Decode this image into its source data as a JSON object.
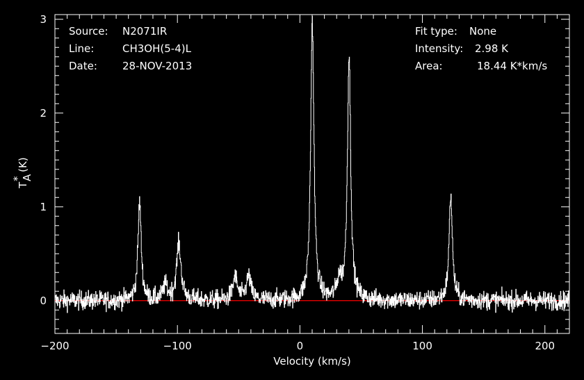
{
  "chart_data": {
    "type": "line",
    "title": "",
    "xlabel": "Velocity (km/s)",
    "ylabel": "T*A (K)",
    "ylabel_main": "T",
    "ylabel_sup": "*",
    "ylabel_sub": "A",
    "ylabel_unit": "(K)",
    "xlim": [
      -200,
      220
    ],
    "ylim": [
      -0.35,
      3.05
    ],
    "xticks": [
      -200,
      -100,
      0,
      100,
      200
    ],
    "xtick_labels": [
      "−200",
      "−100",
      "0",
      "100",
      "200"
    ],
    "yticks": [
      0,
      1,
      2,
      3
    ],
    "ytick_labels": [
      "0",
      "1",
      "2",
      "3"
    ],
    "grid": false,
    "background_color": "#000000",
    "line_color": "#ffffff",
    "baseline_color": "#ff0000",
    "baseline_value": 0,
    "noise_rms": 0.05,
    "series": [
      {
        "peaks": [
          {
            "x": -131,
            "y": 1.05
          },
          {
            "x": -99,
            "y": 0.6
          },
          {
            "x": -110,
            "y": 0.15
          },
          {
            "x": -53,
            "y": 0.25
          },
          {
            "x": -42,
            "y": 0.25
          },
          {
            "x": 10,
            "y": 2.98
          },
          {
            "x": 40,
            "y": 2.61
          },
          {
            "x": 32,
            "y": 0.2
          },
          {
            "x": 123,
            "y": 1.13
          }
        ]
      }
    ]
  },
  "info": {
    "source_label": "Source:",
    "source_value": "N2071IR",
    "line_label": "Line:",
    "line_value": "CH3OH(5-4)L",
    "date_label": "Date:",
    "date_value": "28-NOV-2013",
    "fit_label": "Fit type:",
    "fit_value": "None",
    "intensity_label": "Intensity:",
    "intensity_value": "2.98 K",
    "area_label": "Area:",
    "area_value": "18.44 K*km/s"
  }
}
